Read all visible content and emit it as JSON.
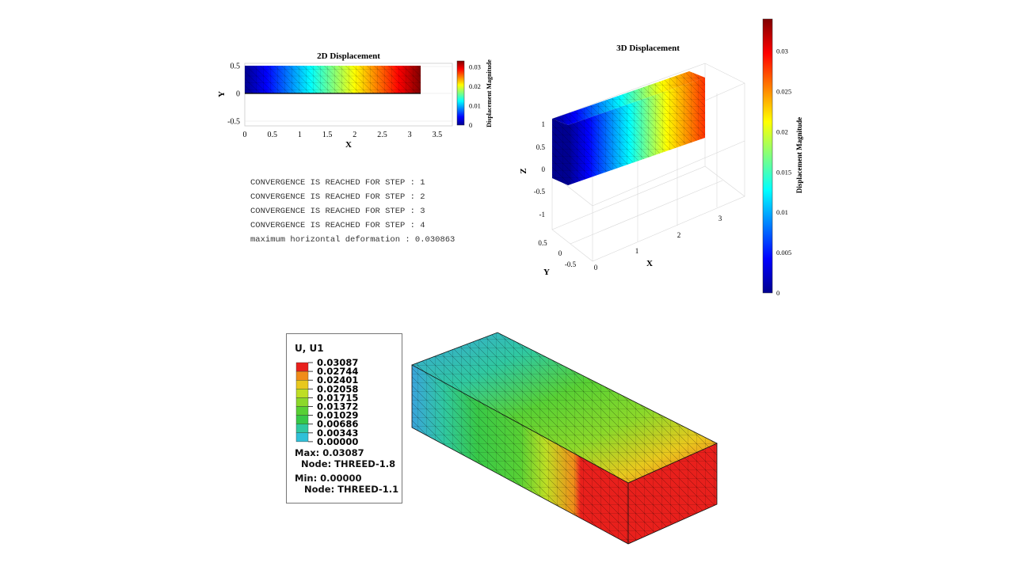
{
  "console": {
    "lines": [
      "CONVERGENCE IS REACHED FOR STEP : 1",
      "CONVERGENCE IS REACHED FOR STEP : 2",
      "CONVERGENCE IS REACHED FOR STEP : 3",
      "CONVERGENCE IS REACHED FOR STEP : 4",
      "maximum horizontal deformation : 0.030863"
    ]
  },
  "abaqus_legend": {
    "title": "U, U1",
    "levels": [
      "0.03087",
      "0.02744",
      "0.02401",
      "0.02058",
      "0.01715",
      "0.01372",
      "0.01029",
      "0.00686",
      "0.00343",
      "0.00000"
    ],
    "colors": [
      "#e8201c",
      "#f08c1a",
      "#e8c81e",
      "#bede24",
      "#8cd82a",
      "#58d034",
      "#38c848",
      "#30c8a0",
      "#30c0d8",
      "#3aa4dc"
    ],
    "max_label": "Max: 0.03087",
    "max_node": "  Node: THREED-1.8",
    "min_label": "Min: 0.00000",
    "min_node": "   Node: THREED-1.1"
  },
  "chart_data": [
    {
      "type": "heatmap",
      "title": "2D Displacement",
      "xlabel": "X",
      "ylabel": "Y",
      "xlim": [
        0,
        3.8
      ],
      "ylim": [
        -0.55,
        0.55
      ],
      "xticks": [
        "0",
        "0.5",
        "1",
        "1.5",
        "2",
        "2.5",
        "3",
        "3.5"
      ],
      "yticks": [
        "0.5",
        "0",
        "-0.5"
      ],
      "colorbar": {
        "label": "Displacement Magnitude",
        "range": [
          0,
          0.033
        ],
        "ticks": [
          "0.03",
          "0.02",
          "0.01",
          "0"
        ]
      },
      "domain": {
        "x": [
          0,
          3.2
        ],
        "y": [
          0,
          0.5
        ]
      },
      "magnitude": {
        "min": 0,
        "max": 0.033
      }
    },
    {
      "type": "heatmap",
      "title": "3D Displacement",
      "xlabel": "X",
      "ylabel": "Y",
      "zlabel": "Z",
      "xticks": [
        "0",
        "1",
        "2",
        "3"
      ],
      "yticks": [
        "-0.5",
        "0",
        "0.5"
      ],
      "zticks": [
        "1",
        "0.5",
        "0",
        "-0.5",
        "-1"
      ],
      "colorbar": {
        "label": "Displacement Magnitude",
        "range": [
          0,
          0.034
        ],
        "ticks": [
          "0.03",
          "0.025",
          "0.02",
          "0.015",
          "0.01",
          "0.005",
          "0"
        ]
      },
      "magnitude": {
        "min": 0,
        "max": 0.034
      }
    },
    {
      "type": "heatmap",
      "title": "",
      "field": "U, U1",
      "range": [
        0,
        0.03087
      ],
      "levels": 9
    }
  ]
}
